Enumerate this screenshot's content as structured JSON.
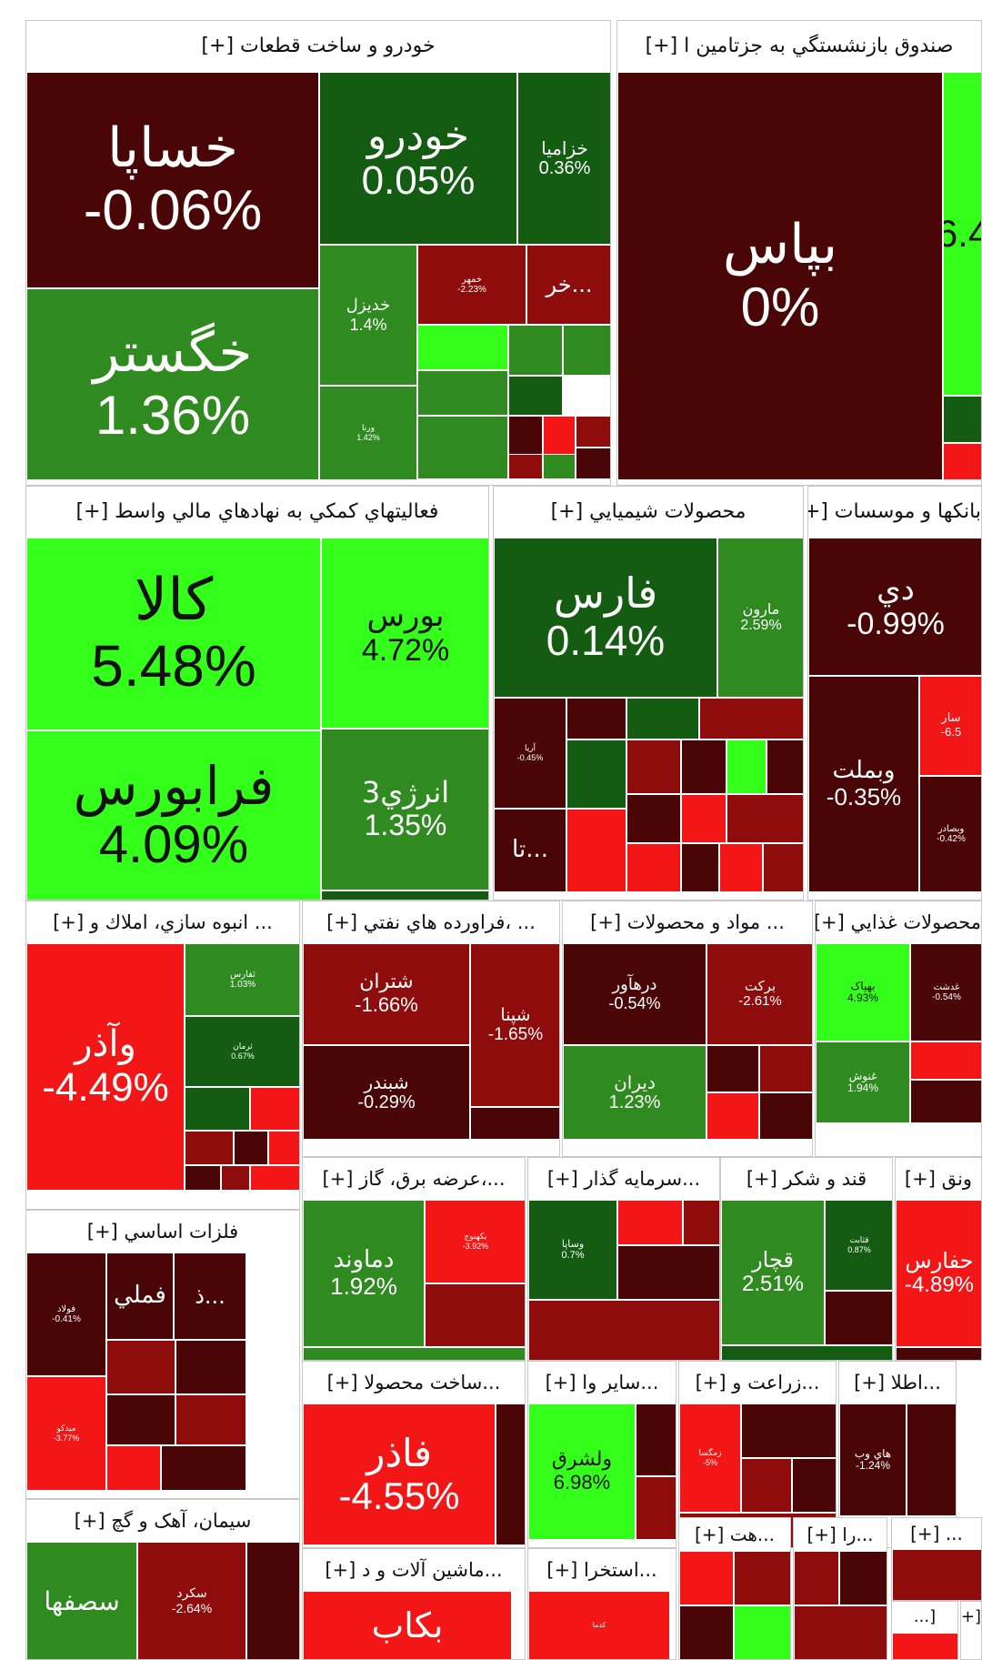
{
  "chart_data": {
    "type": "treemap",
    "colors": {
      "bright_green": "#33ff1a",
      "green": "#2f8a1f",
      "dark_green": "#135c12",
      "maroon": "#4a0606",
      "dark_red": "#8f0c0c",
      "red": "#f21616"
    },
    "sectors": [
      {
        "title": "خودرو و ساخت قطعات [+]",
        "tiles": [
          {
            "symbol": "خساپا",
            "change": "-0.06%",
            "color": "maroon"
          },
          {
            "symbol": "خگستر",
            "change": "1.36%",
            "color": "green"
          },
          {
            "symbol": "خودرو",
            "change": "0.05%",
            "color": "dark_green"
          },
          {
            "symbol": "خزاميا",
            "change": "0.36%",
            "color": "dark_green"
          },
          {
            "symbol": "خديزل",
            "change": "1.4%",
            "color": "green"
          },
          {
            "symbol": "خمهر",
            "change": "-2.23%",
            "color": "dark_red"
          },
          {
            "symbol": "خر...",
            "change": "",
            "color": "dark_red"
          },
          {
            "symbol": "ورنا",
            "change": "1.42%",
            "color": "green"
          }
        ]
      },
      {
        "title": "صندوق بازنشستگي به جزتامين ا [+]",
        "tiles": [
          {
            "symbol": "بپاس",
            "change": "0%",
            "color": "maroon"
          },
          {
            "symbol": "",
            "change": "6.4",
            "color": "bright_green"
          }
        ]
      },
      {
        "title": "فعاليتهاي كمكي به نهادهاي مالي واسط [+]",
        "tiles": [
          {
            "symbol": "كالا",
            "change": "5.48%",
            "color": "bright_green"
          },
          {
            "symbol": "فرابورس",
            "change": "4.09%",
            "color": "bright_green"
          },
          {
            "symbol": "بورس",
            "change": "4.72%",
            "color": "bright_green"
          },
          {
            "symbol": "انرژي3",
            "change": "1.35%",
            "color": "green"
          }
        ]
      },
      {
        "title": "محصولات شيميايي [+]",
        "tiles": [
          {
            "symbol": "فارس",
            "change": "0.14%",
            "color": "dark_green"
          },
          {
            "symbol": "مارون",
            "change": "2.59%",
            "color": "green"
          },
          {
            "symbol": "آريا",
            "change": "-0.45%",
            "color": "maroon"
          },
          {
            "symbol": "تا...",
            "change": "",
            "color": "maroon"
          }
        ]
      },
      {
        "title": "بانكها و موسسات [+]",
        "tiles": [
          {
            "symbol": "دي",
            "change": "-0.99%",
            "color": "maroon"
          },
          {
            "symbol": "وبملت",
            "change": "-0.35%",
            "color": "maroon"
          },
          {
            "symbol": "سار",
            "change": "-6.5",
            "color": "red"
          },
          {
            "symbol": "وبصادر",
            "change": "-0.42%",
            "color": "maroon"
          }
        ]
      },
      {
        "title": "... انبوه سازي، املاك و [+]",
        "tiles": [
          {
            "symbol": "وآذر",
            "change": "-4.49%",
            "color": "red"
          },
          {
            "symbol": "ثفارس",
            "change": "1.03%",
            "color": "green"
          },
          {
            "symbol": "ثرمان",
            "change": "0.67%",
            "color": "dark_green"
          }
        ]
      },
      {
        "title": "... ،فراورده هاي نفتي [+]",
        "tiles": [
          {
            "symbol": "شتران",
            "change": "-1.66%",
            "color": "dark_red"
          },
          {
            "symbol": "شبندر",
            "change": "-0.29%",
            "color": "maroon"
          },
          {
            "symbol": "شپنا",
            "change": "-1.65%",
            "color": "dark_red"
          }
        ]
      },
      {
        "title": "... مواد و محصولات [+]",
        "tiles": [
          {
            "symbol": "درهآور",
            "change": "-0.54%",
            "color": "maroon"
          },
          {
            "symbol": "بركت",
            "change": "-2.61%",
            "color": "dark_red"
          },
          {
            "symbol": "ديران",
            "change": "1.23%",
            "color": "green"
          }
        ]
      },
      {
        "title": "محصولات غذايي [+]",
        "tiles": [
          {
            "symbol": "بهپاک",
            "change": "4.93%",
            "color": "bright_green"
          },
          {
            "symbol": "غدشت",
            "change": "-0.54%",
            "color": "maroon"
          },
          {
            "symbol": "غنوش",
            "change": "1.94%",
            "color": "green"
          }
        ]
      },
      {
        "title": "...،عرضه برق، گاز [+]",
        "tiles": [
          {
            "symbol": "دماوند",
            "change": "1.92%",
            "color": "green"
          },
          {
            "symbol": "بکهنوج",
            "change": "-3.92%",
            "color": "red"
          }
        ]
      },
      {
        "title": "...سرمايه گذار [+]",
        "tiles": [
          {
            "symbol": "وساپا",
            "change": "0.7%",
            "color": "dark_green"
          }
        ]
      },
      {
        "title": "قند و شكر [+]",
        "tiles": [
          {
            "symbol": "قچار",
            "change": "2.51%",
            "color": "green"
          },
          {
            "symbol": "قثابت",
            "change": "0.87%",
            "color": "dark_green"
          }
        ]
      },
      {
        "title": "ونق [+]",
        "tiles": [
          {
            "symbol": "حفارس",
            "change": "-4.89%",
            "color": "red"
          }
        ]
      },
      {
        "title": "فلزات اساسي [+]",
        "tiles": [
          {
            "symbol": "فولاد",
            "change": "-0.41%",
            "color": "maroon"
          },
          {
            "symbol": "فملي",
            "change": "",
            "color": "maroon"
          },
          {
            "symbol": "ذ...",
            "change": "",
            "color": "maroon"
          },
          {
            "symbol": "ميدكو",
            "change": "-3.77%",
            "color": "red"
          }
        ]
      },
      {
        "title": "...ساخت محصولا [+]",
        "tiles": [
          {
            "symbol": "فاذر",
            "change": "-4.55%",
            "color": "red"
          }
        ]
      },
      {
        "title": "...ساير وا [+]",
        "tiles": [
          {
            "symbol": "ولشرق",
            "change": "6.98%",
            "color": "bright_green"
          }
        ]
      },
      {
        "title": "...زراعت و [+]",
        "tiles": [
          {
            "symbol": "زمگسا",
            "change": "-5%",
            "color": "red"
          }
        ]
      },
      {
        "title": "...اطلا [+]",
        "tiles": [
          {
            "symbol": "هاي وب",
            "change": "-1.24%",
            "color": "maroon"
          }
        ]
      },
      {
        "title": "سيمان، آهک و گچ [+]",
        "tiles": [
          {
            "symbol": "سصفها",
            "change": "",
            "color": "green"
          },
          {
            "symbol": "سکرد",
            "change": "-2.64%",
            "color": "dark_red"
          }
        ]
      },
      {
        "title": "...ماشين آلات و د [+]",
        "tiles": [
          {
            "symbol": "بكاب",
            "change": "",
            "color": "red"
          }
        ]
      },
      {
        "title": "...استخرا [+]",
        "tiles": [
          {
            "symbol": "کدما",
            "change": "",
            "color": "red"
          }
        ]
      },
      {
        "title": "...هت [+]",
        "tiles": []
      },
      {
        "title": "...را [+]",
        "tiles": []
      },
      {
        "title": "... [+]",
        "tiles": []
      },
      {
        "title": "[...",
        "tiles": []
      },
      {
        "title": "[+",
        "tiles": []
      }
    ]
  }
}
